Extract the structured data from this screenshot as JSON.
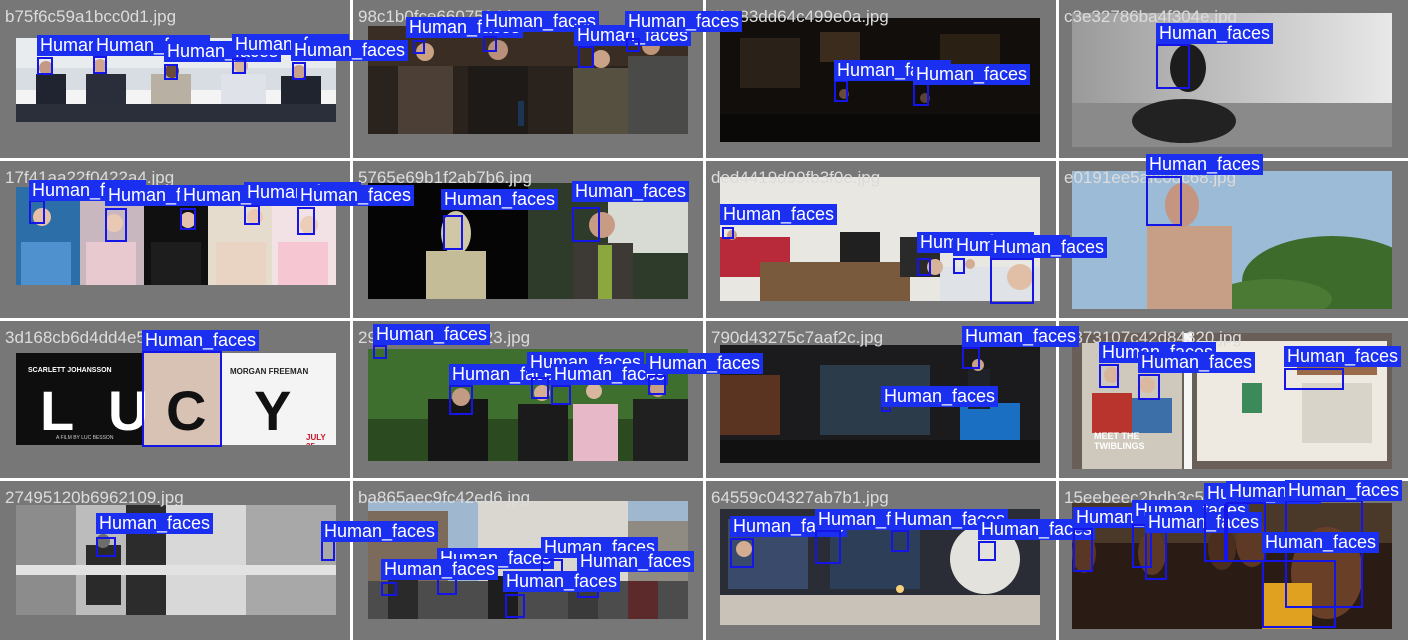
{
  "colors": {
    "cell_bg": "#777777",
    "box": "#1515e8",
    "label_bg": "#1a2ff0",
    "label_text": "#ffffff",
    "filename_text": "#dcdcdc"
  },
  "cells": [
    {
      "filename": "b75f6c59a1bcc0d1.jpg",
      "scene": "panel-meeting"
    },
    {
      "filename": "98c1b0fce6607504.jpg",
      "scene": "panel-discussion"
    },
    {
      "filename": "4be83dd64c499e0a.jpg",
      "scene": "dark-bar"
    },
    {
      "filename": "c3e32786ba4f304e.jpg",
      "scene": "grey-sculpture"
    },
    {
      "filename": "17f41aa22f0422a4.jpg",
      "scene": "portrait-collage"
    },
    {
      "filename": "5765e69b1f2ab7b6.jpg",
      "scene": "two-women"
    },
    {
      "filename": "ded4419d99fb3f0e.jpg",
      "scene": "party-room"
    },
    {
      "filename": "e0191ee5afc0dc68.jpg",
      "scene": "shirtless-man-sky"
    },
    {
      "filename": "3d168cb6d4dd4e5a.jpg",
      "scene": "movie-poster"
    },
    {
      "filename": "29f63cc5a5ea8923.jpg",
      "scene": "crowd-green"
    },
    {
      "filename": "790d43275c7aaf2c.jpg",
      "scene": "dark-event"
    },
    {
      "filename": "e373107c42d84320.jpg",
      "scene": "magazine"
    },
    {
      "filename": "27495120b6962109.jpg",
      "scene": "subway-bw"
    },
    {
      "filename": "ba865aec9fc42ed6.jpg",
      "scene": "city-street"
    },
    {
      "filename": "64559c04327ab7b1.jpg",
      "scene": "display-wall"
    },
    {
      "filename": "15eebeec2bdb3c54.jpg",
      "scene": "smiling-group"
    }
  ],
  "poster": {
    "actor_left": "SCARLETT JOHANSSON",
    "actor_right": "MORGAN FREEMAN",
    "title_letters": [
      "L",
      "U",
      "C",
      "Y"
    ],
    "date": "JULY 25",
    "credit": "A FILM BY LUC BESSON"
  },
  "magazine": {
    "cover_title": "MEET THE TWIBLINGS"
  },
  "detection_label": "Human_faces"
}
